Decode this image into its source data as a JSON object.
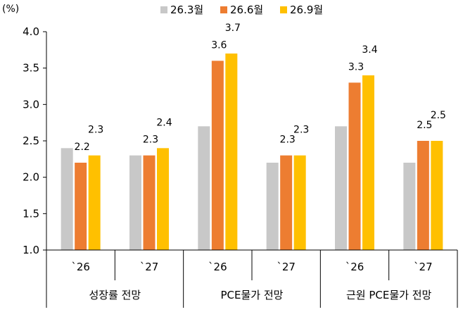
{
  "chart_data": {
    "type": "bar",
    "unit_label": "(%)",
    "ylim": [
      1.0,
      4.0
    ],
    "yticks": [
      "1.0",
      "1.5",
      "2.0",
      "2.5",
      "3.0",
      "3.5",
      "4.0"
    ],
    "grid": false,
    "legend_position": "top",
    "categories": [
      "`26",
      "`27",
      "`26",
      "`27",
      "`26",
      "`27"
    ],
    "groups": [
      "성장률 전망",
      "PCE물가 전망",
      "근원 PCE물가 전망"
    ],
    "series": [
      {
        "name": "26.3월",
        "color": "#c8c8c8",
        "values": [
          2.4,
          2.3,
          2.7,
          2.2,
          2.7,
          2.2
        ],
        "labels": [
          "",
          "",
          "",
          "",
          "",
          ""
        ]
      },
      {
        "name": "26.6월",
        "color": "#ed7d31",
        "values": [
          2.2,
          2.3,
          3.6,
          2.3,
          3.3,
          2.5
        ],
        "labels": [
          "2.2",
          "2.3",
          "3.6",
          "2.3",
          "3.3",
          "2.5"
        ]
      },
      {
        "name": "26.9월",
        "color": "#ffc000",
        "values": [
          2.3,
          2.4,
          3.7,
          2.3,
          3.4,
          2.5
        ],
        "labels": [
          "2.3",
          "2.4",
          "3.7",
          "2.3",
          "3.4",
          "2.5"
        ]
      }
    ]
  }
}
